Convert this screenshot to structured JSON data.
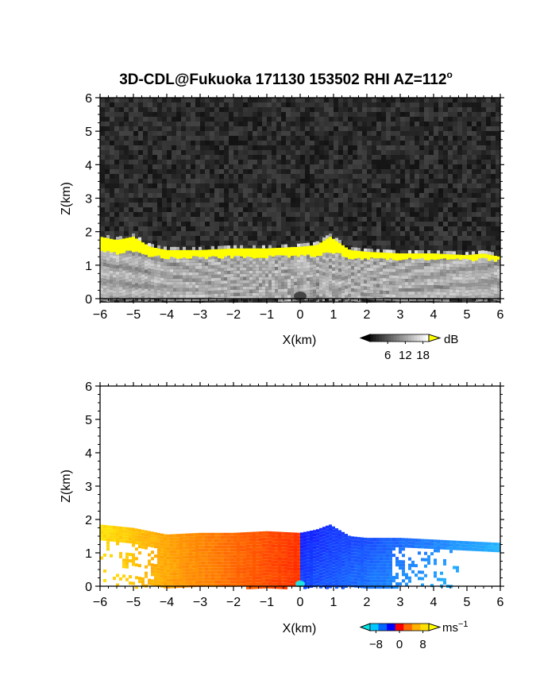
{
  "title": "3D-CDL@Fukuoka 171130 153502 RHI AZ=112",
  "title_degree": "o",
  "chart_data": [
    {
      "id": "reflectivity",
      "type": "heatmap",
      "xlabel": "X(km)",
      "ylabel": "Z(km)",
      "xlim": [
        -6,
        6
      ],
      "ylim": [
        0,
        6
      ],
      "xticks": [
        -6,
        -5,
        -4,
        -3,
        -2,
        -1,
        0,
        1,
        2,
        3,
        4,
        5,
        6
      ],
      "yticks": [
        0,
        1,
        2,
        3,
        4,
        5,
        6
      ],
      "colormap": "grayscale-with-yellow-top",
      "colorbar": {
        "unit": "dB",
        "ticks": [
          6,
          12,
          18
        ],
        "range": [
          0,
          20
        ],
        "overflow_color": "#ffff00"
      },
      "layer_top_km": [
        [
          -6,
          1.85
        ],
        [
          -5.5,
          1.75
        ],
        [
          -5,
          1.85
        ],
        [
          -4.5,
          1.55
        ],
        [
          -4,
          1.45
        ],
        [
          -3,
          1.45
        ],
        [
          -2,
          1.5
        ],
        [
          -1,
          1.5
        ],
        [
          0,
          1.55
        ],
        [
          0.5,
          1.6
        ],
        [
          0.9,
          1.85
        ],
        [
          1.5,
          1.45
        ],
        [
          2,
          1.4
        ],
        [
          3,
          1.35
        ],
        [
          4,
          1.35
        ],
        [
          5,
          1.3
        ],
        [
          5.5,
          1.35
        ],
        [
          6,
          1.25
        ]
      ],
      "layer_base_strong_km": 1.25
    },
    {
      "id": "doppler-velocity",
      "type": "heatmap",
      "xlabel": "X(km)",
      "ylabel": "Z(km)",
      "xlim": [
        -6,
        6
      ],
      "ylim": [
        0,
        6
      ],
      "xticks": [
        -6,
        -5,
        -4,
        -3,
        -2,
        -1,
        0,
        1,
        2,
        3,
        4,
        5,
        6
      ],
      "yticks": [
        0,
        1,
        2,
        3,
        4,
        5,
        6
      ],
      "colormap": "cyan-blue-red-orange-yellow",
      "colorbar": {
        "unit": "ms",
        "unit_exponent": "−1",
        "ticks": [
          -8,
          0,
          8
        ],
        "tick_labels": [
          "−8",
          "0",
          "8"
        ],
        "range": [
          -10,
          10
        ]
      },
      "velocity_sign": {
        "x_lt_0": "positive (toward +8, yellow-orange-red)",
        "x_gt_0": "negative (toward −8, blue)"
      },
      "echo_top_km": [
        [
          -6,
          1.85
        ],
        [
          -5,
          1.75
        ],
        [
          -4,
          1.55
        ],
        [
          -3,
          1.6
        ],
        [
          -2,
          1.6
        ],
        [
          -1,
          1.65
        ],
        [
          0,
          1.6
        ],
        [
          0.5,
          1.7
        ],
        [
          0.9,
          1.85
        ],
        [
          1.5,
          1.5
        ],
        [
          2,
          1.45
        ],
        [
          3,
          1.45
        ],
        [
          4,
          1.4
        ],
        [
          5,
          1.35
        ],
        [
          6,
          1.3
        ]
      ]
    }
  ]
}
